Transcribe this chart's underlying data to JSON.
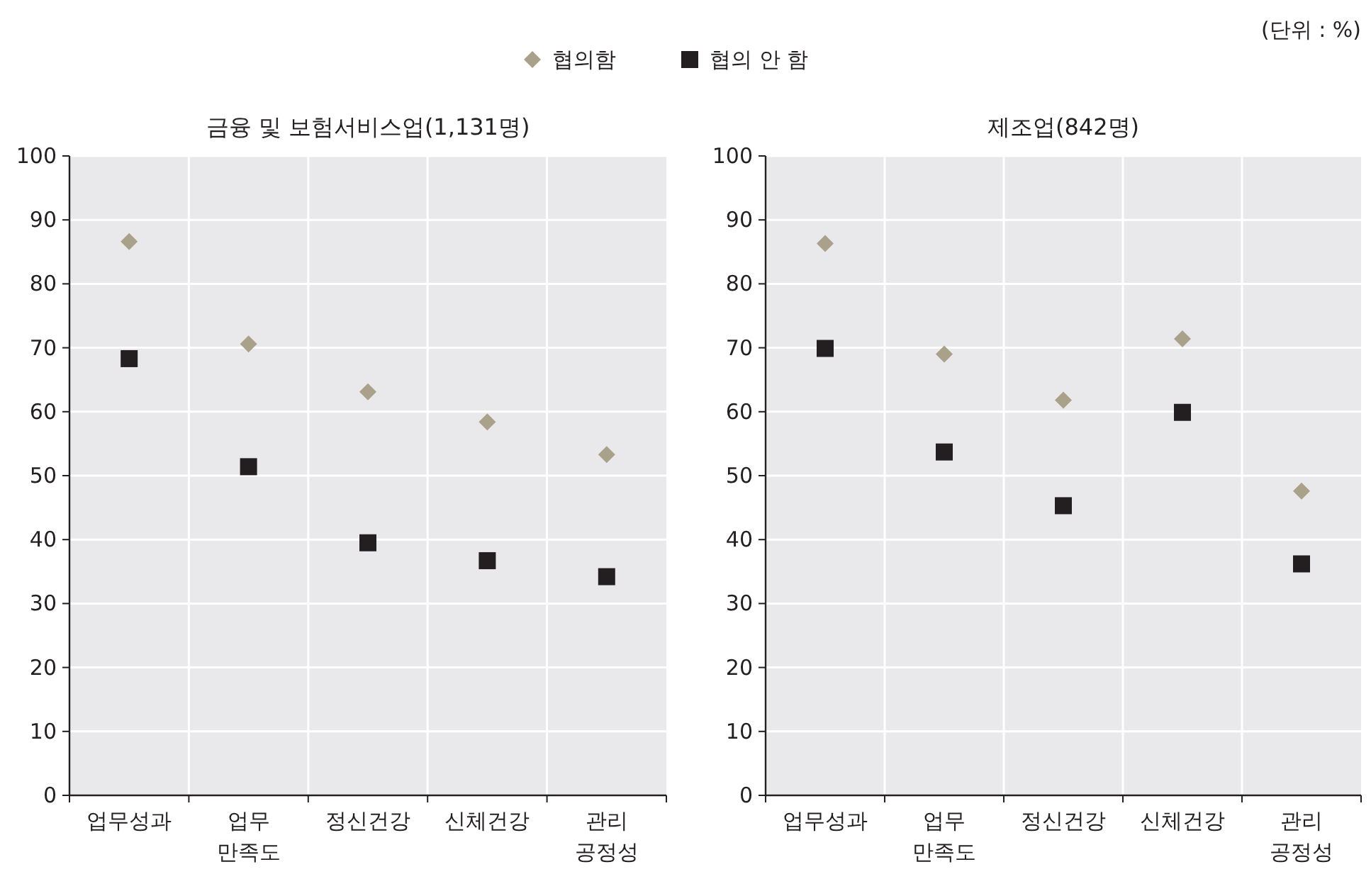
{
  "chart_data": [
    {
      "type": "scatter",
      "title": "금융 및 보험서비스업(1,131명)",
      "categories": [
        "업무성과",
        "업무\n만족도",
        "정신건강",
        "신체건강",
        "관리\n공정성"
      ],
      "series": [
        {
          "name": "협의함",
          "color": "#aaa18a",
          "marker": "diamond",
          "values": [
            86.6,
            70.6,
            63.1,
            58.4,
            53.3
          ]
        },
        {
          "name": "협의 안 함",
          "color": "#231f20",
          "marker": "square",
          "values": [
            68.3,
            51.4,
            39.5,
            36.7,
            34.2
          ]
        }
      ],
      "ylim": [
        0,
        100
      ],
      "yticks": [
        0,
        10,
        20,
        30,
        40,
        50,
        60,
        70,
        80,
        90,
        100
      ],
      "grid": true,
      "legend": "top"
    },
    {
      "type": "scatter",
      "title": "제조업(842명)",
      "categories": [
        "업무성과",
        "업무\n만족도",
        "정신건강",
        "신체건강",
        "관리\n공정성"
      ],
      "series": [
        {
          "color": "#aaa18a",
          "marker": "diamond",
          "values": [
            86.3,
            69.0,
            61.8,
            71.4,
            47.6
          ]
        },
        {
          "color": "#231f20",
          "marker": "square",
          "values": [
            69.9,
            53.7,
            45.3,
            59.9,
            36.2
          ]
        }
      ],
      "ylim": [
        0,
        100
      ],
      "yticks": [
        0,
        10,
        20,
        30,
        40,
        50,
        60,
        70,
        80,
        90,
        100
      ],
      "grid": true,
      "annotations": [
        "(단위 : %)"
      ]
    }
  ]
}
